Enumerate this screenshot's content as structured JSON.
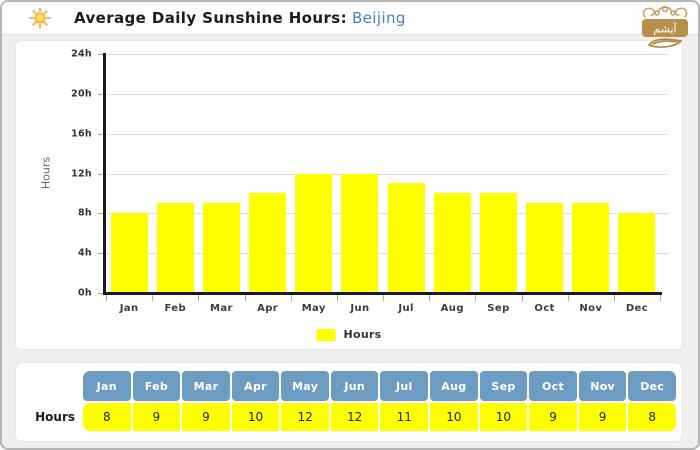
{
  "header": {
    "title": "Average Daily Sunshine Hours:",
    "city": "Beijing",
    "title_color": "#1c1c1c",
    "city_color": "#4a7fbe",
    "logo_text": "آیشم"
  },
  "chart_data": {
    "type": "bar",
    "title": "Average Daily Sunshine Hours: Beijing",
    "categories": [
      "Jan",
      "Feb",
      "Mar",
      "Apr",
      "May",
      "Jun",
      "Jul",
      "Aug",
      "Sep",
      "Oct",
      "Nov",
      "Dec"
    ],
    "series": [
      {
        "name": "Hours",
        "values": [
          8,
          9,
          9,
          10,
          12,
          12,
          11,
          10,
          10,
          9,
          9,
          8
        ]
      }
    ],
    "xlabel": "",
    "ylabel": "Hours",
    "ylim": [
      0,
      24
    ],
    "ytick_labels_top_to_bottom": [
      "24h",
      "20h",
      "16h",
      "12h",
      "8h",
      "4h",
      "0h"
    ],
    "grid": true,
    "bar_color": "#ffff00",
    "legend": {
      "label": "Hours",
      "swatch_color": "#ffff00",
      "position": "bottom-center"
    }
  },
  "table": {
    "row_label": "Hours",
    "columns": [
      "Jan",
      "Feb",
      "Mar",
      "Apr",
      "May",
      "Jun",
      "Jul",
      "Aug",
      "Sep",
      "Oct",
      "Nov",
      "Dec"
    ],
    "values": [
      "8",
      "9",
      "9",
      "10",
      "12",
      "12",
      "11",
      "10",
      "10",
      "9",
      "9",
      "8"
    ],
    "header_bg": "#6d9cc3",
    "header_text_color": "#ffffff",
    "cell_bg": "#ffff00",
    "cell_text_color": "#222222"
  }
}
